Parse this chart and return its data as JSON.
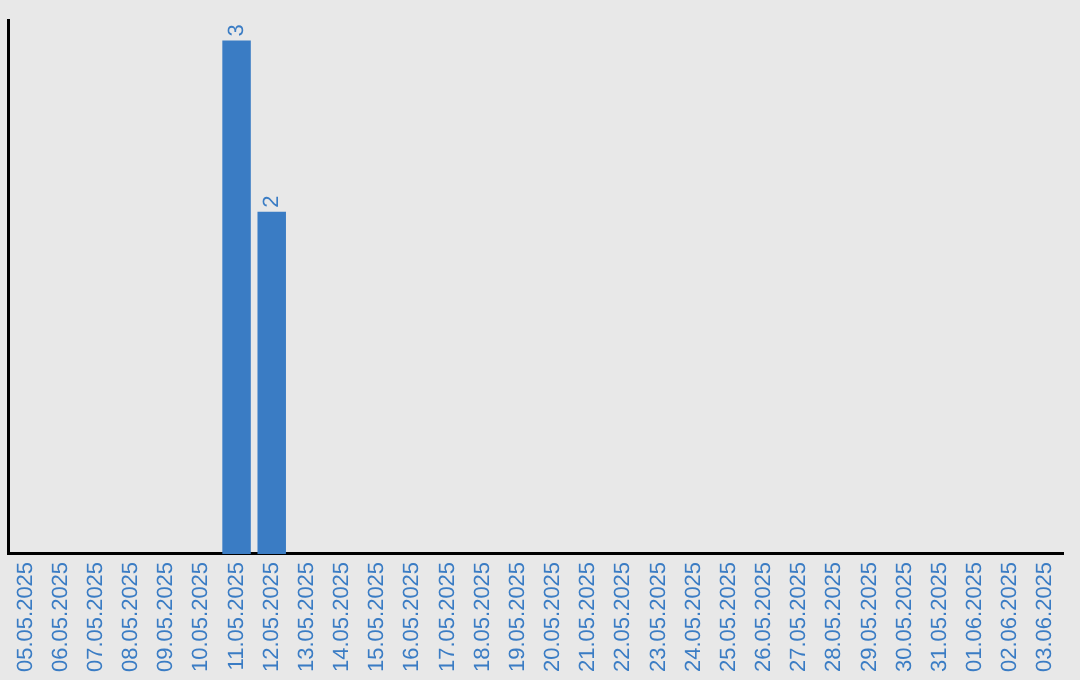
{
  "chart_data": {
    "type": "bar",
    "categories": [
      "05.05.2025",
      "06.05.2025",
      "07.05.2025",
      "08.05.2025",
      "09.05.2025",
      "10.05.2025",
      "11.05.2025",
      "12.05.2025",
      "13.05.2025",
      "14.05.2025",
      "15.05.2025",
      "16.05.2025",
      "17.05.2025",
      "18.05.2025",
      "19.05.2025",
      "20.05.2025",
      "21.05.2025",
      "22.05.2025",
      "23.05.2025",
      "24.05.2025",
      "25.05.2025",
      "26.05.2025",
      "27.05.2025",
      "28.05.2025",
      "29.05.2025",
      "30.05.2025",
      "31.05.2025",
      "01.06.2025",
      "02.06.2025",
      "03.06.2025"
    ],
    "values": [
      0,
      0,
      0,
      0,
      0,
      0,
      3,
      2,
      0,
      0,
      0,
      0,
      0,
      0,
      0,
      0,
      0,
      0,
      0,
      0,
      0,
      0,
      0,
      0,
      0,
      0,
      0,
      0,
      0,
      0
    ],
    "value_labels": [
      null,
      null,
      null,
      null,
      null,
      null,
      "3",
      "2",
      null,
      null,
      null,
      null,
      null,
      null,
      null,
      null,
      null,
      null,
      null,
      null,
      null,
      null,
      null,
      null,
      null,
      null,
      null,
      null,
      null,
      null
    ],
    "color": "#3a7cc4",
    "grid": false,
    "legend": false,
    "tick_labels": "x"
  }
}
